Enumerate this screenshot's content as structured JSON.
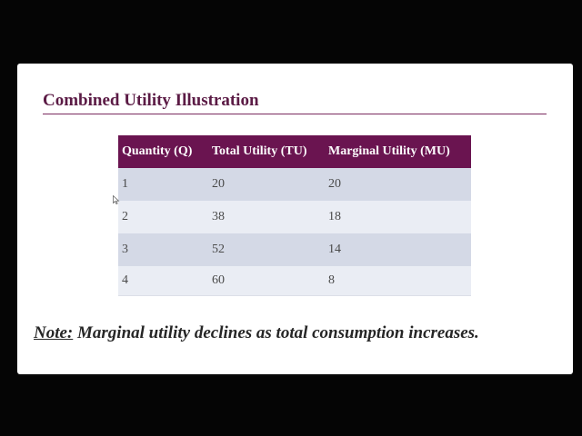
{
  "slide": {
    "title": "Combined Utility Illustration",
    "note_label": "Note:",
    "note_text": " Marginal utility declines as total consumption increases."
  },
  "table": {
    "headers": [
      "Quantity (Q)",
      "Total Utility (TU)",
      "Marginal Utility (MU)"
    ],
    "rows": [
      [
        "1",
        "20",
        "20"
      ],
      [
        "2",
        "38",
        "18"
      ],
      [
        "3",
        "52",
        "14"
      ],
      [
        "4",
        "60",
        "8"
      ]
    ]
  },
  "colors": {
    "title": "#5b1b45",
    "header_bg": "#6a1450",
    "row_odd": "#d4d9e6",
    "row_even": "#eaedf4",
    "background": "#000000"
  },
  "icons": {
    "cursor": "mouse-pointer-icon"
  }
}
